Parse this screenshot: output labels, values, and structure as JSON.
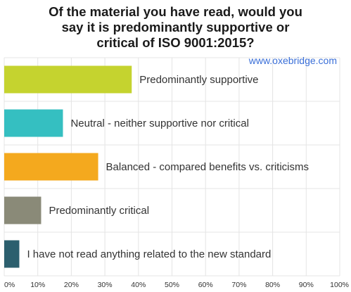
{
  "title": "Of the material you have read, would you\nsay it is predominantly supportive or\ncritical of ISO 9001:2015?",
  "watermark": "www.oxebridge.com",
  "chart_data": {
    "type": "bar",
    "orientation": "horizontal",
    "categories": [
      "Predominantly supportive",
      "Neutral - neither supportive nor critical",
      "Balanced - compared benefits vs. criticisms",
      "Predominantly critical",
      "I have not read anything related to the new standard"
    ],
    "values": [
      38,
      17.5,
      28,
      11,
      4.5
    ],
    "colors": [
      "#c5d32f",
      "#35bfc1",
      "#f4a91e",
      "#8a8a78",
      "#2c5f6e"
    ],
    "xlim": [
      0,
      100
    ],
    "xticks": [
      "0%",
      "10%",
      "20%",
      "30%",
      "40%",
      "50%",
      "60%",
      "70%",
      "80%",
      "90%",
      "100%"
    ],
    "grid": true
  }
}
